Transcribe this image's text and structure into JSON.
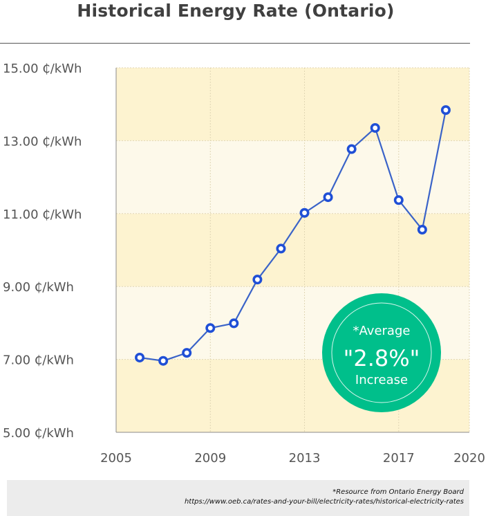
{
  "title": "Historical Energy Rate (Ontario)",
  "badge": {
    "line1": "*Average",
    "line2": "\"2.8%\"",
    "line3": "Increase",
    "color": "#00bf8b"
  },
  "source": {
    "line1": "*Resource from Ontario Energy Board",
    "line2": "https://www.oeb.ca/rates-and-your-bill/electricity-rates/historical-electricity-rates"
  },
  "colors": {
    "line": "#3a63c8",
    "marker": "#1f4fd6",
    "band_a": "#fdf3d0",
    "band_b": "#fdf9ea"
  },
  "chart_data": {
    "type": "line",
    "title": "Historical Energy Rate (Ontario)",
    "xlim": [
      2005,
      2020
    ],
    "ylim": [
      5,
      15
    ],
    "xticks": [
      2005,
      2009,
      2013,
      2017,
      2020
    ],
    "xtick_labels": [
      "2005",
      "2009",
      "2013",
      "2017",
      "2020"
    ],
    "yticks": [
      5,
      7,
      9,
      11,
      13,
      15
    ],
    "ytick_labels": [
      "5.00 ₵/kWh",
      "7.00 ₵/kWh",
      "9.00 ₵/kWh",
      "11.00 ₵/kWh",
      "13.00 ₵/kWh",
      "15.00 ₵/kWh"
    ],
    "grid": true,
    "series": [
      {
        "x": [
          2006,
          2007,
          2008,
          2009,
          2010,
          2011,
          2012,
          2013,
          2014,
          2015,
          2016,
          2017,
          2018,
          2019
        ],
        "values": [
          7.05,
          6.96,
          7.18,
          7.86,
          7.99,
          9.19,
          10.04,
          11.02,
          11.45,
          12.77,
          13.35,
          11.37,
          10.56,
          13.84
        ]
      }
    ]
  }
}
